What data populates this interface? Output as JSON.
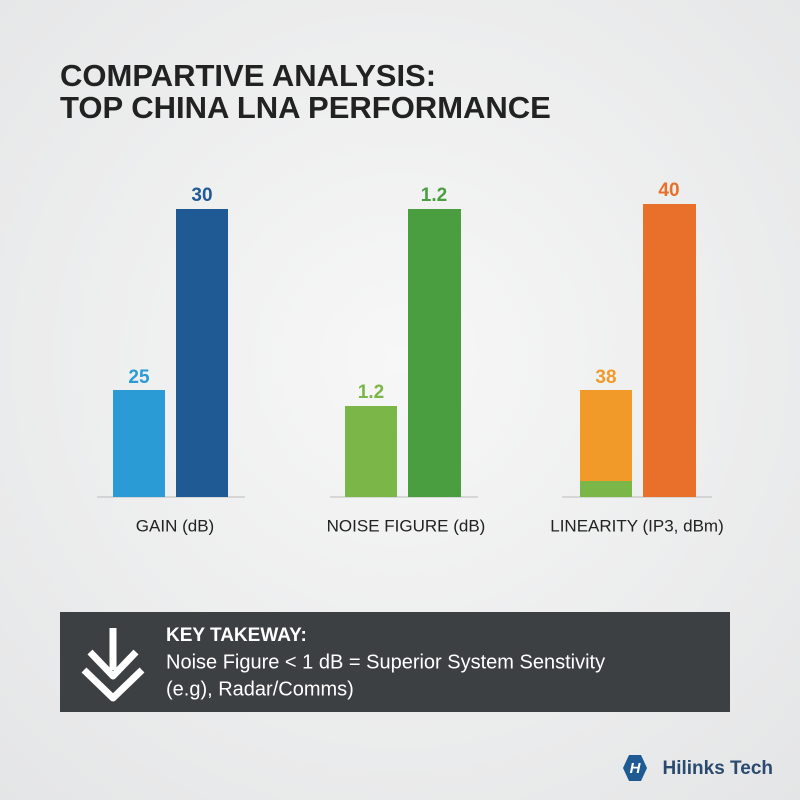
{
  "title": {
    "line1": "COMPARTIVE ANALYSIS:",
    "line2": "TOP CHINA LNA PERFORMANCE"
  },
  "groups": [
    {
      "label": "GAIN (dB)",
      "values": [
        25,
        30
      ]
    },
    {
      "label": "NOISE FIGURE (dB)",
      "values": [
        1.2,
        1.2
      ]
    },
    {
      "label": "LINEARITY (IP3, dBm)",
      "values": [
        38,
        40
      ]
    }
  ],
  "takeaway": {
    "heading": "KEY TAKEWAY:",
    "line1": "Noise Figure < 1 dB = Superior System Senstivity",
    "line2": "(e.g), Radar/Comms)"
  },
  "brand": "Hilinks Tech"
}
